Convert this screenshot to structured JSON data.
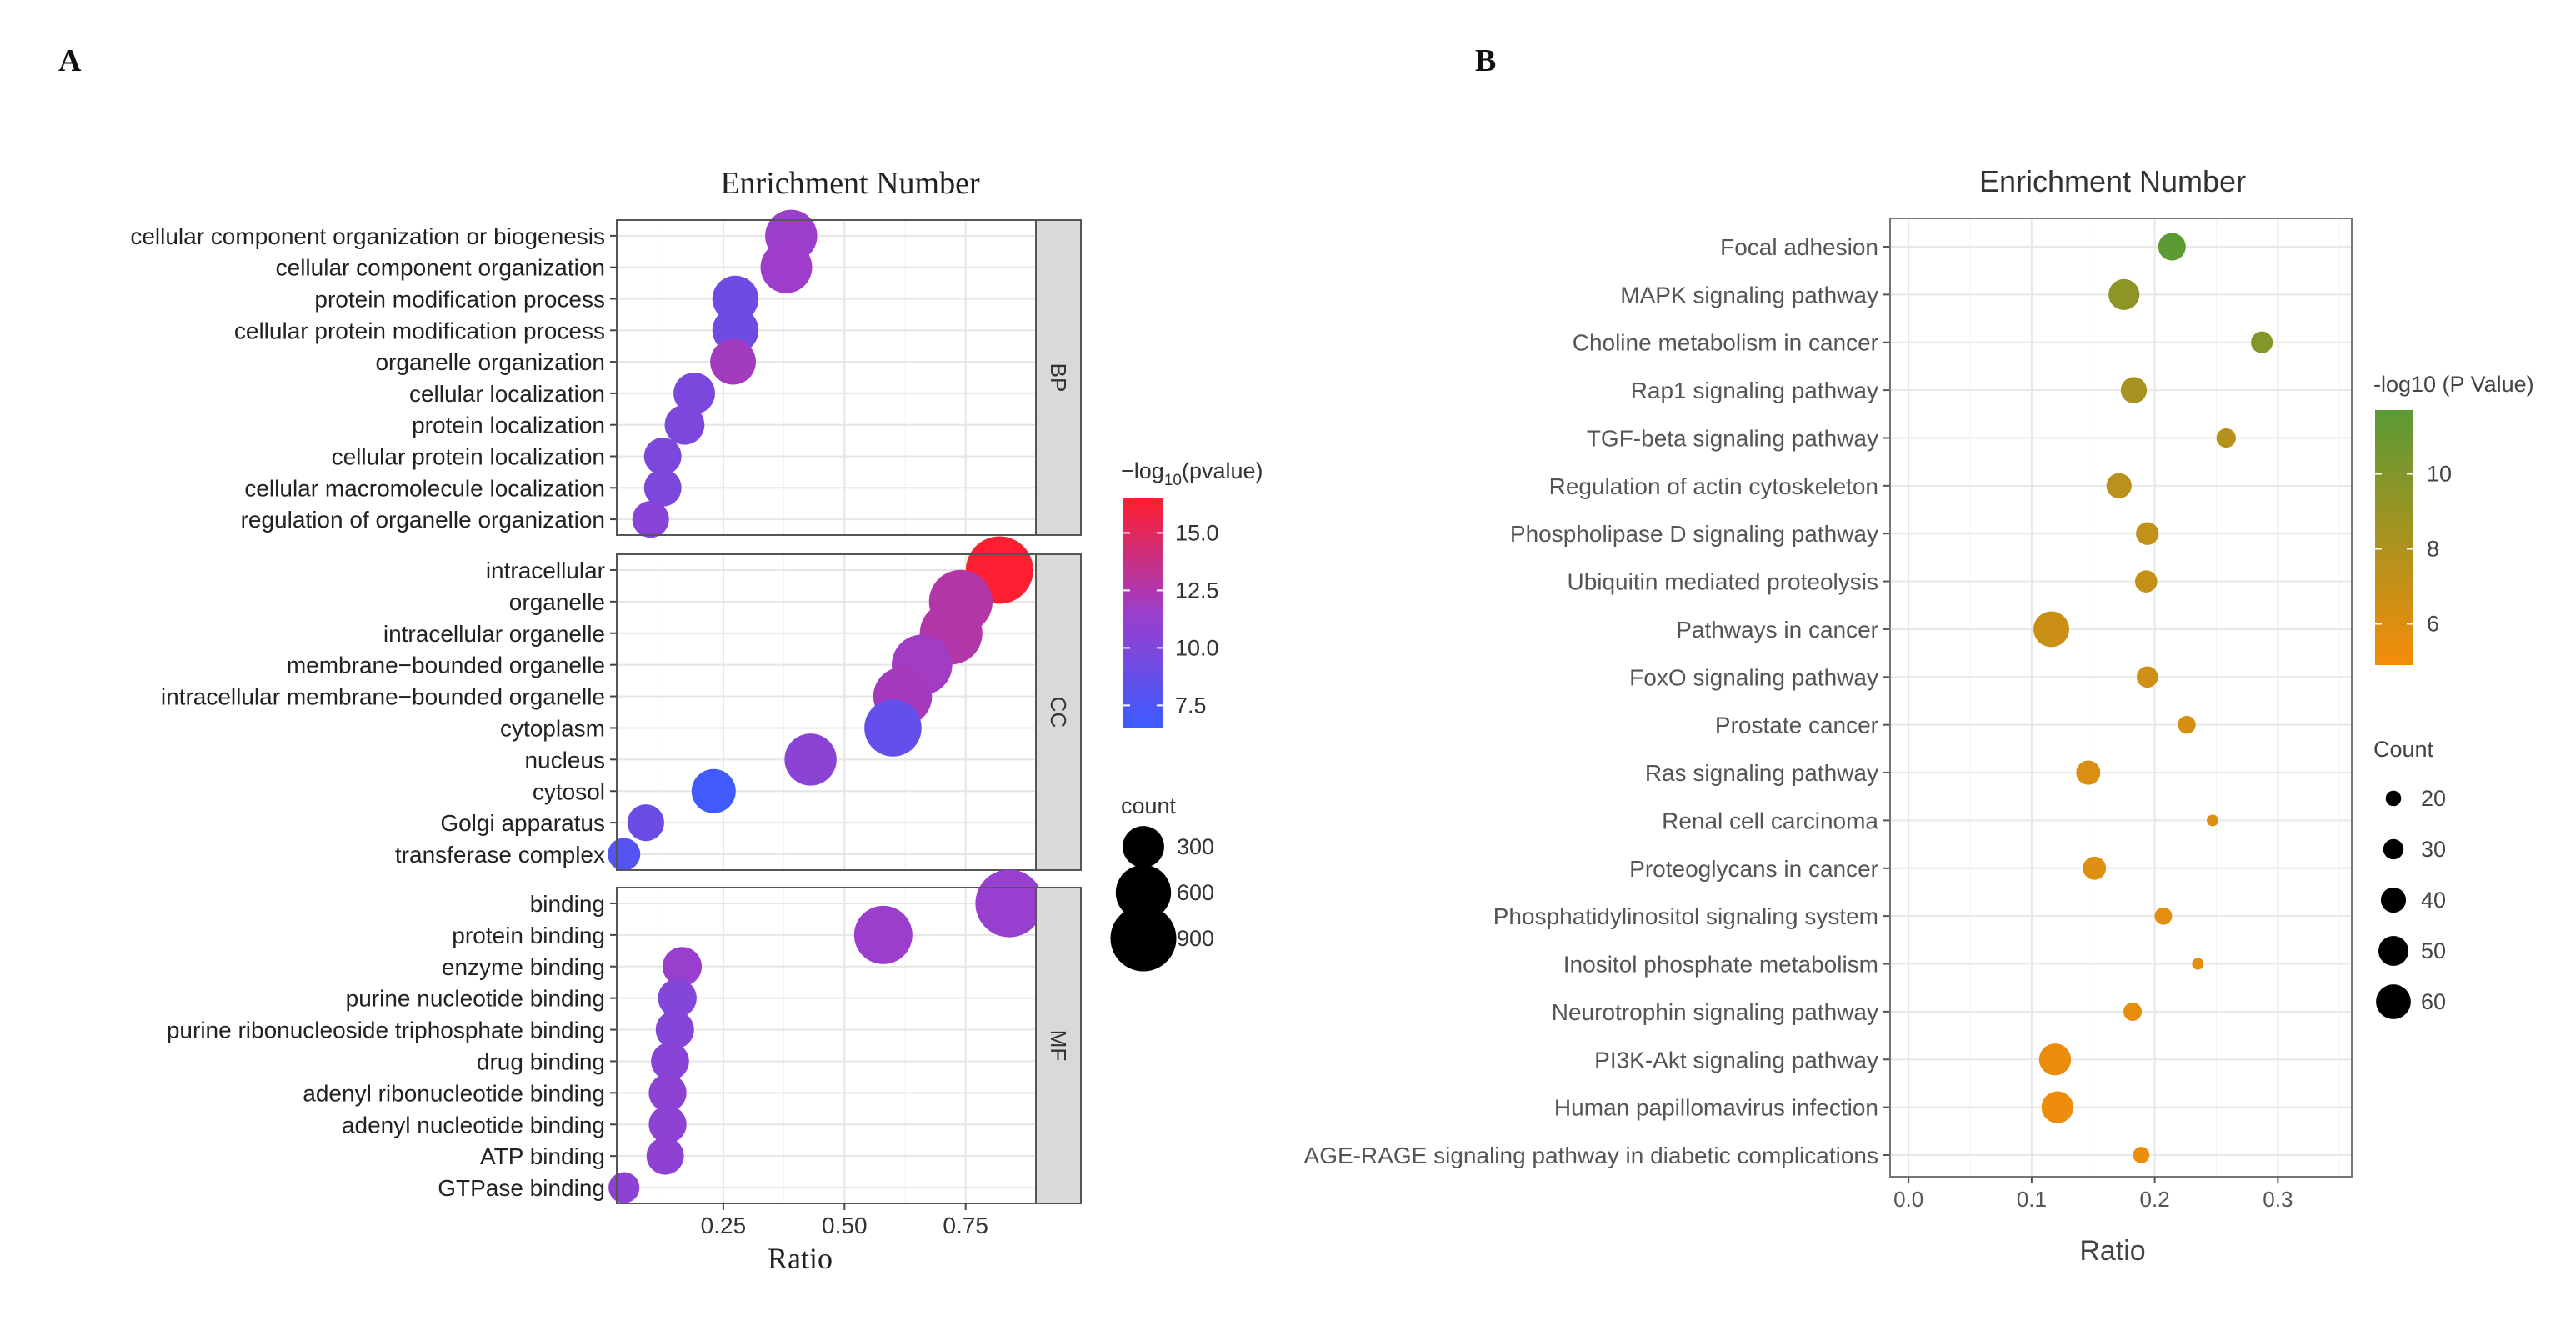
{
  "panels": {
    "a": "A",
    "b": "B"
  },
  "chart_data": [
    {
      "type": "scatter",
      "title": "Enrichment Number",
      "xlabel": "Ratio",
      "xlim": [
        0.03,
        0.895
      ],
      "xticks": [
        0.25,
        0.5,
        0.75
      ],
      "xtick_labels": [
        "0.25",
        "0.50",
        "0.75"
      ],
      "color_legend": {
        "title_prefix": "−log",
        "title_sub": "10",
        "title_suffix": "(pvalue)",
        "range": [
          6.5,
          16.5
        ],
        "colors": [
          "#3a5cff",
          "#9b3ecc",
          "#ff1e2e"
        ],
        "ticks": [
          15.0,
          12.5,
          10.0,
          7.5
        ],
        "tick_labels": [
          "15.0",
          "12.5",
          "10.0",
          "7.5"
        ]
      },
      "size_legend": {
        "title": "count",
        "values": [
          300,
          600,
          900
        ],
        "labels": [
          "300",
          "600",
          "900"
        ]
      },
      "facets": [
        {
          "label": "BP",
          "points": [
            {
              "term": "cellular component organization or biogenesis",
              "ratio": 0.39,
              "count": 520,
              "logp": 11.5
            },
            {
              "term": "cellular component organization",
              "ratio": 0.38,
              "count": 510,
              "logp": 11.6
            },
            {
              "term": "protein modification process",
              "ratio": 0.275,
              "count": 390,
              "logp": 9.3
            },
            {
              "term": "cellular protein modification process",
              "ratio": 0.275,
              "count": 390,
              "logp": 9.3
            },
            {
              "term": "organelle organization",
              "ratio": 0.27,
              "count": 380,
              "logp": 11.9
            },
            {
              "term": "cellular localization",
              "ratio": 0.19,
              "count": 300,
              "logp": 9.8
            },
            {
              "term": "protein localization",
              "ratio": 0.17,
              "count": 270,
              "logp": 10.0
            },
            {
              "term": "cellular protein localization",
              "ratio": 0.125,
              "count": 230,
              "logp": 9.9
            },
            {
              "term": "cellular macromolecule localization",
              "ratio": 0.125,
              "count": 230,
              "logp": 9.9
            },
            {
              "term": "regulation of organelle organization",
              "ratio": 0.1,
              "count": 220,
              "logp": 10.5
            }
          ]
        },
        {
          "label": "CC",
          "points": [
            {
              "term": "intracellular",
              "ratio": 0.82,
              "count": 950,
              "logp": 16.4
            },
            {
              "term": "organelle",
              "ratio": 0.74,
              "count": 830,
              "logp": 12.7
            },
            {
              "term": "intracellular organelle",
              "ratio": 0.72,
              "count": 800,
              "logp": 12.6
            },
            {
              "term": "membrane−bounded organelle",
              "ratio": 0.66,
              "count": 740,
              "logp": 11.8
            },
            {
              "term": "intracellular membrane−bounded organelle",
              "ratio": 0.62,
              "count": 690,
              "logp": 12.0
            },
            {
              "term": "cytoplasm",
              "ratio": 0.6,
              "count": 650,
              "logp": 8.6
            },
            {
              "term": "nucleus",
              "ratio": 0.43,
              "count": 520,
              "logp": 10.6
            },
            {
              "term": "cytosol",
              "ratio": 0.23,
              "count": 350,
              "logp": 6.8
            },
            {
              "term": "Golgi apparatus",
              "ratio": 0.09,
              "count": 220,
              "logp": 9.0
            },
            {
              "term": "transferase complex",
              "ratio": 0.045,
              "count": 160,
              "logp": 7.8
            }
          ]
        },
        {
          "label": "MF",
          "points": [
            {
              "term": "binding",
              "ratio": 0.84,
              "count": 960,
              "logp": 11.3
            },
            {
              "term": "protein binding",
              "ratio": 0.58,
              "count": 680,
              "logp": 11.5
            },
            {
              "term": "enzyme binding",
              "ratio": 0.165,
              "count": 260,
              "logp": 11.4
            },
            {
              "term": "purine nucleotide binding",
              "ratio": 0.155,
              "count": 250,
              "logp": 10.2
            },
            {
              "term": "purine ribonucleoside triphosphate binding",
              "ratio": 0.15,
              "count": 245,
              "logp": 10.3
            },
            {
              "term": "drug binding",
              "ratio": 0.14,
              "count": 240,
              "logp": 10.5
            },
            {
              "term": "adenyl ribonucleotide binding",
              "ratio": 0.135,
              "count": 235,
              "logp": 10.8
            },
            {
              "term": "adenyl nucleotide binding",
              "ratio": 0.135,
              "count": 235,
              "logp": 10.8
            },
            {
              "term": "ATP binding",
              "ratio": 0.13,
              "count": 230,
              "logp": 10.9
            },
            {
              "term": "GTPase binding",
              "ratio": 0.045,
              "count": 140,
              "logp": 10.8
            }
          ]
        }
      ]
    },
    {
      "type": "scatter",
      "title": "Enrichment Number",
      "xlabel": "Ratio",
      "xlim": [
        -0.015,
        0.36
      ],
      "xticks": [
        0.0,
        0.1,
        0.2,
        0.3
      ],
      "xtick_labels": [
        "0.0",
        "0.1",
        "0.2",
        "0.3"
      ],
      "color_legend": {
        "title": "-log10 (P Value)",
        "range": [
          4.9,
          11.7
        ],
        "colors": [
          "#f58c0a",
          "#5a9a35"
        ],
        "ticks": [
          10,
          8,
          6
        ],
        "tick_labels": [
          "10",
          "8",
          "6"
        ]
      },
      "size_legend": {
        "title": "Count",
        "values": [
          20,
          30,
          40,
          50,
          60
        ],
        "labels": [
          "20",
          "30",
          "40",
          "50",
          "60"
        ]
      },
      "points": [
        {
          "term": "Focal adhesion",
          "ratio": 0.214,
          "count": 45,
          "logp": 11.6
        },
        {
          "term": "MAPK signaling pathway",
          "ratio": 0.175,
          "count": 52,
          "logp": 9.4
        },
        {
          "term": "Choline metabolism in cancer",
          "ratio": 0.287,
          "count": 33,
          "logp": 10.0
        },
        {
          "term": "Rap1 signaling pathway",
          "ratio": 0.183,
          "count": 42,
          "logp": 8.3
        },
        {
          "term": "TGF-beta signaling pathway",
          "ratio": 0.258,
          "count": 28,
          "logp": 7.7
        },
        {
          "term": "Regulation of actin cytoskeleton",
          "ratio": 0.171,
          "count": 40,
          "logp": 7.5
        },
        {
          "term": "Phospholipase D signaling pathway",
          "ratio": 0.194,
          "count": 35,
          "logp": 7.2
        },
        {
          "term": "Ubiquitin mediated proteolysis",
          "ratio": 0.193,
          "count": 34,
          "logp": 7.0
        },
        {
          "term": "Pathways in cancer",
          "ratio": 0.116,
          "count": 62,
          "logp": 6.8
        },
        {
          "term": "FoxO signaling pathway",
          "ratio": 0.194,
          "count": 32,
          "logp": 6.6
        },
        {
          "term": "Prostate cancer",
          "ratio": 0.226,
          "count": 25,
          "logp": 6.2
        },
        {
          "term": "Ras signaling pathway",
          "ratio": 0.146,
          "count": 38,
          "logp": 6.1
        },
        {
          "term": "Renal cell carcinoma",
          "ratio": 0.247,
          "count": 12,
          "logp": 5.9
        },
        {
          "term": "Proteoglycans in cancer",
          "ratio": 0.151,
          "count": 36,
          "logp": 5.8
        },
        {
          "term": "Phosphatidylinositol signaling system",
          "ratio": 0.207,
          "count": 24,
          "logp": 5.7
        },
        {
          "term": "Inositol phosphate metabolism",
          "ratio": 0.235,
          "count": 12,
          "logp": 5.6
        },
        {
          "term": "Neurotrophin signaling pathway",
          "ratio": 0.182,
          "count": 26,
          "logp": 5.5
        },
        {
          "term": "PI3K-Akt signaling pathway",
          "ratio": 0.119,
          "count": 54,
          "logp": 5.4
        },
        {
          "term": "Human papillomavirus infection",
          "ratio": 0.121,
          "count": 54,
          "logp": 5.2
        },
        {
          "term": "AGE-RAGE signaling pathway in diabetic complications",
          "ratio": 0.189,
          "count": 22,
          "logp": 5.3
        }
      ]
    }
  ]
}
